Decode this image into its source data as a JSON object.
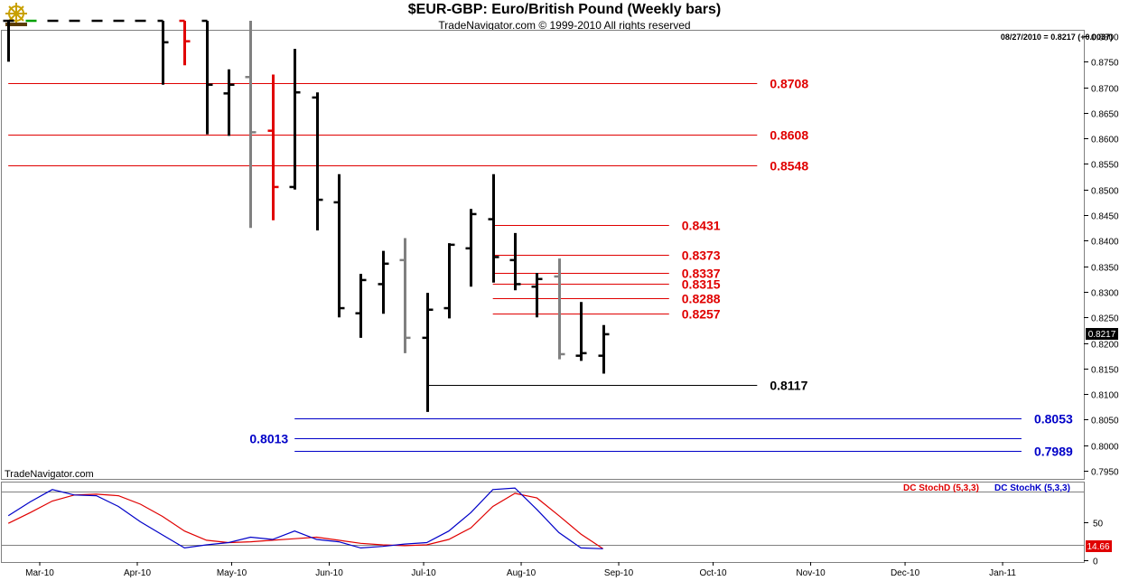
{
  "header": {
    "title": "$EUR-GBP:  Euro/British Pound  (Weekly bars)",
    "copyright": "TradeNavigator.com © 1999-2010 All rights reserved",
    "last_quote": "08/27/2010 = 0.8217 (+0.0037)",
    "watermark": "TradeNavigator.com",
    "logo_icon": "ship-wheel-icon"
  },
  "colors": {
    "up_bar": "#000000",
    "down_bar": "#e00000",
    "neutral_bar": "#808080",
    "resistance": "#e00000",
    "support": "#0000c8",
    "pivot": "#000000",
    "stoch_d": "#e00000",
    "stoch_k": "#0000c8"
  },
  "chart_data": [
    {
      "type": "ohlc",
      "x_dates": [
        "Mar-10",
        "Apr-10",
        "May-10",
        "Jun-10",
        "Jul-10",
        "Aug-10",
        "Sep-10",
        "Oct-10",
        "Nov-10",
        "Dec-10",
        "Jan-11"
      ],
      "ylim": [
        0.793,
        0.883
      ],
      "yticks": [
        "0.8800",
        "0.8750",
        "0.8700",
        "0.8650",
        "0.8600",
        "0.8550",
        "0.8500",
        "0.8450",
        "0.8400",
        "0.8350",
        "0.8300",
        "0.8250",
        "0.8200",
        "0.8150",
        "0.8100",
        "0.8050",
        "0.8000",
        "0.7950"
      ],
      "price_badge": "0.8217",
      "bars": [
        {
          "week": "2010-02-19",
          "open": 0.883,
          "high": 0.883,
          "low": 0.875,
          "close": 0.883,
          "color": "black"
        },
        {
          "week": "2010-02-26",
          "open": 0.883,
          "high": 0.883,
          "low": 0.883,
          "close": 0.883,
          "color": "green"
        },
        {
          "week": "2010-03-05",
          "open": 0.883,
          "high": 0.883,
          "low": 0.883,
          "close": 0.883,
          "color": "black"
        },
        {
          "week": "2010-03-12",
          "open": 0.883,
          "high": 0.883,
          "low": 0.883,
          "close": 0.883,
          "color": "black"
        },
        {
          "week": "2010-03-19",
          "open": 0.883,
          "high": 0.883,
          "low": 0.883,
          "close": 0.883,
          "color": "black"
        },
        {
          "week": "2010-03-26",
          "open": 0.883,
          "high": 0.883,
          "low": 0.883,
          "close": 0.883,
          "color": "black"
        },
        {
          "week": "2010-04-02",
          "open": 0.883,
          "high": 0.883,
          "low": 0.883,
          "close": 0.883,
          "color": "black"
        },
        {
          "week": "2010-04-09",
          "open": 0.883,
          "high": 0.883,
          "low": 0.8705,
          "close": 0.8788,
          "color": "black"
        },
        {
          "week": "2010-04-16",
          "open": 0.883,
          "high": 0.883,
          "low": 0.8743,
          "close": 0.879,
          "color": "red"
        },
        {
          "week": "2010-04-23",
          "open": 0.883,
          "high": 0.883,
          "low": 0.8608,
          "close": 0.8705,
          "color": "black"
        },
        {
          "week": "2010-04-30",
          "open": 0.8688,
          "high": 0.8735,
          "low": 0.8605,
          "close": 0.8705,
          "color": "black"
        },
        {
          "week": "2010-05-07",
          "open": 0.872,
          "high": 0.883,
          "low": 0.8425,
          "close": 0.8612,
          "color": "gray"
        },
        {
          "week": "2010-05-14",
          "open": 0.8615,
          "high": 0.8725,
          "low": 0.844,
          "close": 0.8505,
          "color": "red"
        },
        {
          "week": "2010-05-21",
          "open": 0.8505,
          "high": 0.8775,
          "low": 0.85,
          "close": 0.869,
          "color": "black"
        },
        {
          "week": "2010-05-28",
          "open": 0.868,
          "high": 0.869,
          "low": 0.842,
          "close": 0.848,
          "color": "black"
        },
        {
          "week": "2010-06-04",
          "open": 0.8475,
          "high": 0.853,
          "low": 0.825,
          "close": 0.8268,
          "color": "black"
        },
        {
          "week": "2010-06-11",
          "open": 0.8258,
          "high": 0.8335,
          "low": 0.821,
          "close": 0.8323,
          "color": "black"
        },
        {
          "week": "2010-06-18",
          "open": 0.8315,
          "high": 0.838,
          "low": 0.8257,
          "close": 0.8355,
          "color": "black"
        },
        {
          "week": "2010-06-25",
          "open": 0.8362,
          "high": 0.8405,
          "low": 0.818,
          "close": 0.821,
          "color": "gray"
        },
        {
          "week": "2010-07-02",
          "open": 0.821,
          "high": 0.8298,
          "low": 0.8065,
          "close": 0.8265,
          "color": "black"
        },
        {
          "week": "2010-07-09",
          "open": 0.8268,
          "high": 0.8395,
          "low": 0.8248,
          "close": 0.8392,
          "color": "black"
        },
        {
          "week": "2010-07-16",
          "open": 0.8385,
          "high": 0.8462,
          "low": 0.831,
          "close": 0.8452,
          "color": "black"
        },
        {
          "week": "2010-07-23",
          "open": 0.8442,
          "high": 0.853,
          "low": 0.8318,
          "close": 0.8368,
          "color": "black"
        },
        {
          "week": "2010-07-30",
          "open": 0.8362,
          "high": 0.8415,
          "low": 0.8303,
          "close": 0.8315,
          "color": "black"
        },
        {
          "week": "2010-08-06",
          "open": 0.831,
          "high": 0.8337,
          "low": 0.825,
          "close": 0.8325,
          "color": "black"
        },
        {
          "week": "2010-08-13",
          "open": 0.833,
          "high": 0.8365,
          "low": 0.8168,
          "close": 0.8178,
          "color": "gray"
        },
        {
          "week": "2010-08-20",
          "open": 0.8175,
          "high": 0.828,
          "low": 0.8165,
          "close": 0.818,
          "color": "black"
        },
        {
          "week": "2010-08-27",
          "open": 0.8175,
          "high": 0.8235,
          "low": 0.814,
          "close": 0.8217,
          "color": "black"
        }
      ],
      "levels": [
        {
          "label": "0.8708",
          "value": 0.8708,
          "kind": "resistance",
          "from": "2010-02-19",
          "to": "2010-10-15"
        },
        {
          "label": "0.8608",
          "value": 0.8608,
          "kind": "resistance",
          "from": "2010-02-19",
          "to": "2010-10-15"
        },
        {
          "label": "0.8548",
          "value": 0.8548,
          "kind": "resistance",
          "from": "2010-02-19",
          "to": "2010-10-15"
        },
        {
          "label": "0.8431",
          "value": 0.8431,
          "kind": "resistance",
          "from": "2010-07-23",
          "to": "2010-09-17"
        },
        {
          "label": "0.8373",
          "value": 0.8373,
          "kind": "resistance",
          "from": "2010-07-23",
          "to": "2010-09-17"
        },
        {
          "label": "0.8337",
          "value": 0.8337,
          "kind": "resistance",
          "from": "2010-07-23",
          "to": "2010-09-17"
        },
        {
          "label": "0.8315",
          "value": 0.8315,
          "kind": "resistance",
          "from": "2010-07-23",
          "to": "2010-09-17"
        },
        {
          "label": "0.8288",
          "value": 0.8288,
          "kind": "resistance",
          "from": "2010-07-23",
          "to": "2010-09-17"
        },
        {
          "label": "0.8257",
          "value": 0.8257,
          "kind": "resistance",
          "from": "2010-07-23",
          "to": "2010-09-17"
        },
        {
          "label": "0.8117",
          "value": 0.8117,
          "kind": "pivot",
          "from": "2010-07-02",
          "to": "2010-10-15"
        },
        {
          "label": "0.8053",
          "value": 0.8053,
          "kind": "support",
          "from": "2010-05-21",
          "to": "2011-01-07"
        },
        {
          "label": "0.8013",
          "value": 0.8013,
          "kind": "support",
          "from": "2010-05-21",
          "to": "2011-01-07",
          "label_side": "left"
        },
        {
          "label": "0.7989",
          "value": 0.7989,
          "kind": "support",
          "from": "2010-05-21",
          "to": "2011-01-07"
        }
      ]
    },
    {
      "type": "line",
      "legend": [
        "DC StochD (5,3,3)",
        "DC StochK (5,3,3)"
      ],
      "ylim": [
        0,
        100
      ],
      "yticks": [
        "50",
        "0"
      ],
      "reference_lines": [
        90,
        20
      ],
      "value_badge": "14.66",
      "x": [
        "2010-02-19",
        "2010-02-26",
        "2010-03-05",
        "2010-03-12",
        "2010-03-19",
        "2010-03-26",
        "2010-04-02",
        "2010-04-09",
        "2010-04-16",
        "2010-04-23",
        "2010-04-30",
        "2010-05-07",
        "2010-05-14",
        "2010-05-21",
        "2010-05-28",
        "2010-06-04",
        "2010-06-11",
        "2010-06-18",
        "2010-06-25",
        "2010-07-02",
        "2010-07-09",
        "2010-07-16",
        "2010-07-23",
        "2010-07-30",
        "2010-08-06",
        "2010-08-13",
        "2010-08-20",
        "2010-08-27"
      ],
      "series": [
        {
          "name": "DC StochD (5,3,3)",
          "color": "#e00000",
          "values": [
            48,
            62,
            77,
            85,
            86,
            84,
            73,
            57,
            38,
            26,
            23,
            24,
            26,
            28,
            30,
            26,
            22,
            20,
            19,
            20,
            27,
            42,
            70,
            87,
            81,
            58,
            34,
            15
          ]
        },
        {
          "name": "DC StochK (5,3,3)",
          "color": "#0000c8",
          "values": [
            58,
            76,
            92,
            85,
            84,
            70,
            50,
            33,
            16,
            20,
            23,
            30,
            27,
            38,
            27,
            24,
            16,
            18,
            21,
            23,
            38,
            62,
            92,
            94,
            66,
            36,
            16,
            15
          ]
        }
      ]
    }
  ]
}
